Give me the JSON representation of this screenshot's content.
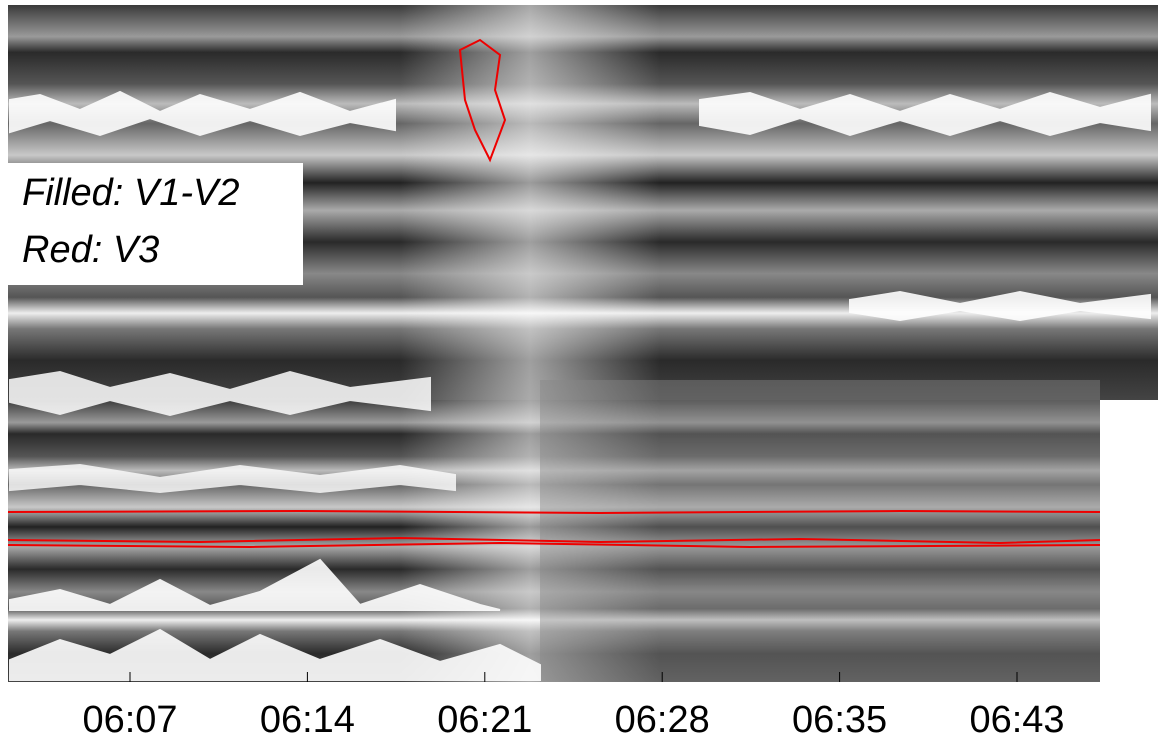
{
  "legend": {
    "lines": [
      "Filled: V1-V2",
      "Red: V3"
    ]
  },
  "x_axis": {
    "ticks": [
      "06:07",
      "06:14",
      "06:21",
      "06:28",
      "06:35",
      "06:43"
    ]
  }
}
